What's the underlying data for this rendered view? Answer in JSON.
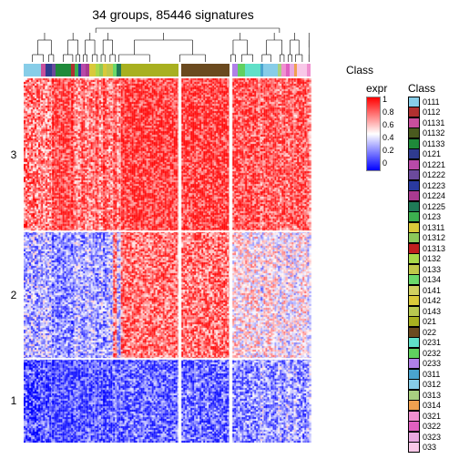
{
  "title": "34 groups, 85446 signatures",
  "classbar_label": "Class",
  "expr_legend": {
    "title": "expr",
    "ticks": [
      "1",
      "0.8",
      "0.6",
      "0.4",
      "0.2",
      "0"
    ],
    "gradient": [
      "#ff0000",
      "#ffffff",
      "#0000ff"
    ]
  },
  "row_groups": [
    {
      "label": "3",
      "h": 0.42
    },
    {
      "label": "2",
      "h": 0.35
    },
    {
      "label": "1",
      "h": 0.23
    }
  ],
  "columns": [
    {
      "w": 0.055,
      "c": "#87cde8",
      "band": "LM"
    },
    {
      "w": 0.014,
      "c": "#c94f9c",
      "band": "LM"
    },
    {
      "w": 0.02,
      "c": "#2f3b8f",
      "band": "LM"
    },
    {
      "w": 0.01,
      "c": "#6b4a9c",
      "band": "LH"
    },
    {
      "w": 0.05,
      "c": "#1f8a3a",
      "band": "LH"
    },
    {
      "w": 0.01,
      "c": "#b03030",
      "band": "LH"
    },
    {
      "w": 0.012,
      "c": "#3cb04f",
      "band": "LM"
    },
    {
      "w": 0.01,
      "c": "#2a3a9f",
      "band": "LM"
    },
    {
      "w": 0.012,
      "c": "#b84aa8",
      "band": "LH"
    },
    {
      "w": 0.012,
      "c": "#a83a90",
      "band": "LM"
    },
    {
      "w": 0.02,
      "c": "#d9c93a",
      "band": "LM"
    },
    {
      "w": 0.012,
      "c": "#a8d94a",
      "band": "LH"
    },
    {
      "w": 0.012,
      "c": "#8cc85a",
      "band": "LM"
    },
    {
      "w": 0.012,
      "c": "#d9c93a",
      "band": "LH"
    },
    {
      "w": 0.02,
      "c": "#c0c84a",
      "band": "LM"
    },
    {
      "w": 0.012,
      "c": "#6bd96b",
      "band": "HH"
    },
    {
      "w": 0.012,
      "c": "#1f7a57",
      "band": "LM"
    },
    {
      "w": 0.18,
      "c": "#a8b020",
      "band": "HH"
    },
    {
      "w": 0.01,
      "c": "#ffffff",
      "band": "GAP"
    },
    {
      "w": 0.15,
      "c": "#6b4a1f",
      "band": "HH"
    },
    {
      "w": 0.01,
      "c": "#ffffff",
      "band": "GAP"
    },
    {
      "w": 0.018,
      "c": "#b080e8",
      "band": "HM"
    },
    {
      "w": 0.022,
      "c": "#60d060",
      "band": "HM"
    },
    {
      "w": 0.048,
      "c": "#60e0c8",
      "band": "HM"
    },
    {
      "w": 0.01,
      "c": "#4aa4d0",
      "band": "HL"
    },
    {
      "w": 0.045,
      "c": "#87cde8",
      "band": "HM"
    },
    {
      "w": 0.012,
      "c": "#a8d080",
      "band": "HL"
    },
    {
      "w": 0.014,
      "c": "#f090d0",
      "band": "HM"
    },
    {
      "w": 0.012,
      "c": "#e060c0",
      "band": "HL"
    },
    {
      "w": 0.012,
      "c": "#e8a8e0",
      "band": "HM"
    },
    {
      "w": 0.01,
      "c": "#f0a050",
      "band": "HL"
    },
    {
      "w": 0.032,
      "c": "#f8c8e8",
      "band": "HM"
    },
    {
      "w": 0.01,
      "c": "#f090d0",
      "band": "HL"
    }
  ],
  "class_legend": {
    "title": "Class",
    "items": [
      {
        "l": "0111",
        "c": "#87cde8"
      },
      {
        "l": "0112",
        "c": "#b03030"
      },
      {
        "l": "01131",
        "c": "#c94f9c"
      },
      {
        "l": "01132",
        "c": "#4a5a1f"
      },
      {
        "l": "01133",
        "c": "#1f8a3a"
      },
      {
        "l": "0121",
        "c": "#2f3b8f"
      },
      {
        "l": "01221",
        "c": "#b84aa8"
      },
      {
        "l": "01222",
        "c": "#6b4a9c"
      },
      {
        "l": "01223",
        "c": "#2a3a9f"
      },
      {
        "l": "01224",
        "c": "#a83a90"
      },
      {
        "l": "01225",
        "c": "#1f7a57"
      },
      {
        "l": "0123",
        "c": "#3cb04f"
      },
      {
        "l": "01311",
        "c": "#d9c93a"
      },
      {
        "l": "01312",
        "c": "#8cc85a"
      },
      {
        "l": "01313",
        "c": "#c01f1f"
      },
      {
        "l": "0132",
        "c": "#a8d94a"
      },
      {
        "l": "0133",
        "c": "#c0c84a"
      },
      {
        "l": "0134",
        "c": "#6bd96b"
      },
      {
        "l": "0141",
        "c": "#d0d060"
      },
      {
        "l": "0142",
        "c": "#d9c93a"
      },
      {
        "l": "0143",
        "c": "#b8c850"
      },
      {
        "l": "021",
        "c": "#a8b020"
      },
      {
        "l": "022",
        "c": "#6b4a1f"
      },
      {
        "l": "0231",
        "c": "#60e0c8"
      },
      {
        "l": "0232",
        "c": "#60d060"
      },
      {
        "l": "0233",
        "c": "#b080e8"
      },
      {
        "l": "0311",
        "c": "#4aa4d0"
      },
      {
        "l": "0312",
        "c": "#87cde8"
      },
      {
        "l": "0313",
        "c": "#a8d080"
      },
      {
        "l": "0314",
        "c": "#f0a050"
      },
      {
        "l": "0321",
        "c": "#f090d0"
      },
      {
        "l": "0322",
        "c": "#e060c0"
      },
      {
        "l": "0323",
        "c": "#e8a8e0"
      },
      {
        "l": "033",
        "c": "#f8c8e8"
      }
    ]
  },
  "noise_seed": 12345
}
